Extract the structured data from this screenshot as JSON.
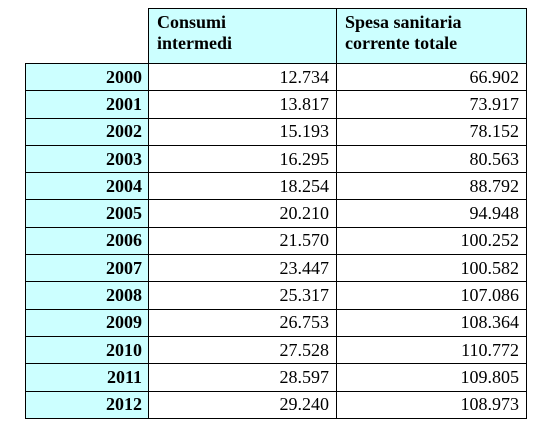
{
  "chart_data": {
    "type": "table",
    "columns": [
      "Consumi intermedi",
      "Spesa sanitaria corrente totale"
    ],
    "header_lines": [
      [
        "Consumi",
        "intermedi"
      ],
      [
        "Spesa sanitaria",
        "corrente totale"
      ]
    ],
    "rows": [
      {
        "year": "2000",
        "values": [
          "12.734",
          "66.902"
        ]
      },
      {
        "year": "2001",
        "values": [
          "13.817",
          "73.917"
        ]
      },
      {
        "year": "2002",
        "values": [
          "15.193",
          "78.152"
        ]
      },
      {
        "year": "2003",
        "values": [
          "16.295",
          "80.563"
        ]
      },
      {
        "year": "2004",
        "values": [
          "18.254",
          "88.792"
        ]
      },
      {
        "year": "2005",
        "values": [
          "20.210",
          "94.948"
        ]
      },
      {
        "year": "2006",
        "values": [
          "21.570",
          "100.252"
        ]
      },
      {
        "year": "2007",
        "values": [
          "23.447",
          "100.582"
        ]
      },
      {
        "year": "2008",
        "values": [
          "25.317",
          "107.086"
        ]
      },
      {
        "year": "2009",
        "values": [
          "26.753",
          "108.364"
        ]
      },
      {
        "year": "2010",
        "values": [
          "27.528",
          "110.772"
        ]
      },
      {
        "year": "2011",
        "values": [
          "28.597",
          "109.805"
        ]
      },
      {
        "year": "2012",
        "values": [
          "29.240",
          "108.973"
        ]
      }
    ]
  },
  "colors": {
    "header_fill": "#ccffff",
    "year_fill": "#ccffff",
    "cell_fill": "#ffffff",
    "border": "#000000"
  }
}
